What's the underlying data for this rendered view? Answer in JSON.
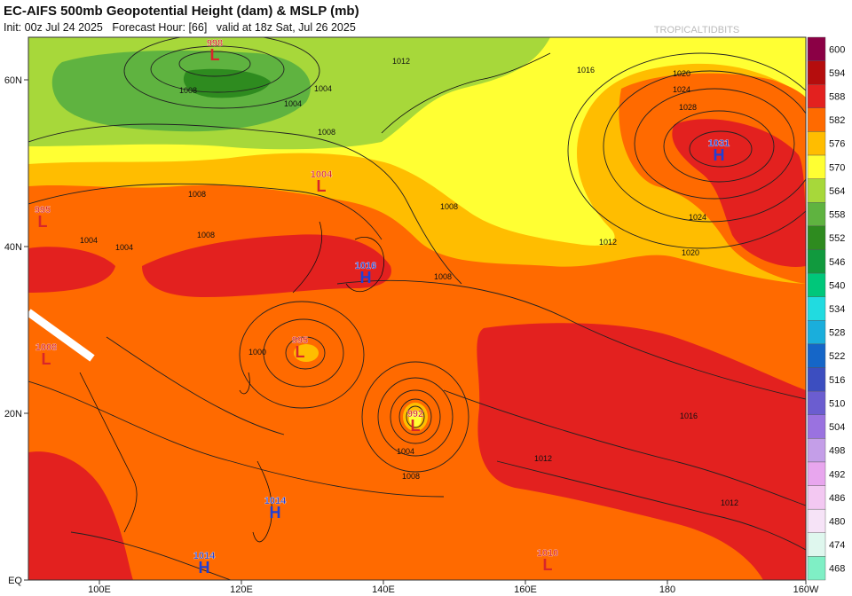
{
  "header": {
    "title": "EC-AIFS 500mb Geopotential Height (dam) & MSLP (mb)",
    "init": "Init: 00z Jul 24 2025",
    "forecast_hour": "Forecast Hour: [66]",
    "valid": "valid at 18z Sat, Jul 26 2025"
  },
  "axes": {
    "lon_labels": [
      "100E",
      "120E",
      "140E",
      "160E",
      "180",
      "160W"
    ],
    "lat_labels": [
      "60N",
      "40N",
      "20N",
      "EQ"
    ]
  },
  "colorbar": {
    "levels": [
      "600",
      "594",
      "588",
      "582",
      "576",
      "570",
      "564",
      "558",
      "552",
      "546",
      "540",
      "534",
      "528",
      "522",
      "516",
      "510",
      "504",
      "498",
      "492",
      "486",
      "480",
      "474",
      "468"
    ],
    "colors": [
      "#8b0045",
      "#b50d0d",
      "#e3211f",
      "#ff6a00",
      "#ffbd00",
      "#ffff33",
      "#a7d83a",
      "#5fb340",
      "#2e8b1f",
      "#119a3e",
      "#00c77a",
      "#21dbe0",
      "#1aaedc",
      "#1566c8",
      "#3c4ec0",
      "#6b5dd0",
      "#9a72e0",
      "#c49ee8",
      "#e8a6ee",
      "#f3c8f2",
      "#f6e3f7",
      "#dff7ee",
      "#7fefc5"
    ]
  },
  "pressure_centers": [
    {
      "type": "L",
      "value": "998",
      "id": "low-north-mongolia"
    },
    {
      "type": "L",
      "value": "1004",
      "id": "low-manchuria"
    },
    {
      "type": "L",
      "value": "995",
      "id": "low-west-edge-north"
    },
    {
      "type": "L",
      "value": "995",
      "id": "low-east-china-sea"
    },
    {
      "type": "L",
      "value": "992",
      "id": "low-tropical-storm"
    },
    {
      "type": "L",
      "value": "1008",
      "id": "low-south-china"
    },
    {
      "type": "L",
      "value": "1010",
      "id": "low-equatorial-pacific"
    },
    {
      "type": "H",
      "value": "1016",
      "id": "high-japan"
    },
    {
      "type": "H",
      "value": "1031",
      "id": "high-north-pacific"
    },
    {
      "type": "H",
      "value": "1014",
      "id": "high-philippine-sea"
    },
    {
      "type": "H",
      "value": "1014",
      "id": "high-south-china-sea"
    }
  ],
  "isobar_labels": [
    "1008",
    "1004",
    "1012",
    "1016",
    "1020",
    "1024",
    "1028",
    "1008",
    "1012",
    "1008",
    "1000",
    "1004",
    "1008",
    "1012",
    "1016",
    "1024",
    "1020",
    "1012",
    "1004",
    "1008",
    "1012",
    "1004",
    "1008",
    "1008",
    "1004"
  ],
  "watermark": "TROPICALTIDBITS"
}
